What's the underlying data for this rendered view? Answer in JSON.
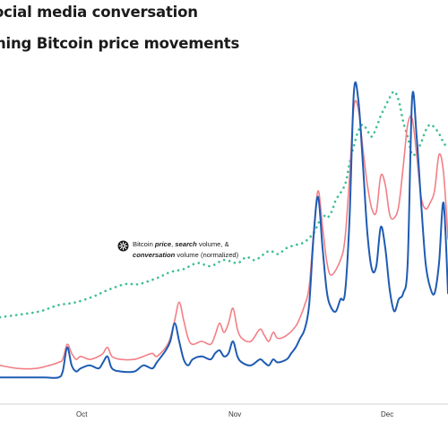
{
  "chart_data": {
    "type": "line",
    "title": {
      "line1": "ocial media conversation",
      "line2": "ning Bitcoin price movements"
    },
    "xlabel": "",
    "ylabel": "",
    "x_ticks": [
      "Oct",
      "Nov",
      "Dec"
    ],
    "annotation": {
      "prefix": "Bitcoin ",
      "w1": "price",
      "sep1": ", ",
      "w2": "search",
      "mid": " volume, &",
      "w3": "conversation",
      "suffix": " volume (normalized)"
    },
    "grid": false,
    "legend": "none",
    "y_range": [
      0,
      100
    ],
    "x_range": [
      0,
      100
    ],
    "series": [
      {
        "key": "price",
        "color": "#3bbf8f",
        "style": "dotted",
        "points": [
          [
            0,
            22
          ],
          [
            5,
            23
          ],
          [
            9,
            24
          ],
          [
            13,
            26
          ],
          [
            17,
            27
          ],
          [
            21,
            29
          ],
          [
            24,
            31
          ],
          [
            28,
            33
          ],
          [
            31,
            33
          ],
          [
            35,
            35
          ],
          [
            38,
            37
          ],
          [
            41,
            38
          ],
          [
            44,
            40
          ],
          [
            47,
            39
          ],
          [
            50,
            41
          ],
          [
            53,
            40
          ],
          [
            55,
            42
          ],
          [
            57,
            41
          ],
          [
            60,
            44
          ],
          [
            62,
            43
          ],
          [
            64,
            45
          ],
          [
            66,
            46
          ],
          [
            68,
            47
          ],
          [
            70,
            50
          ],
          [
            71,
            53
          ],
          [
            72,
            56
          ],
          [
            73,
            55
          ],
          [
            74,
            57
          ],
          [
            75,
            61
          ],
          [
            77,
            66
          ],
          [
            78,
            73
          ],
          [
            79,
            79
          ],
          [
            80,
            84
          ],
          [
            81,
            86
          ],
          [
            82,
            84
          ],
          [
            83,
            82
          ],
          [
            84,
            85
          ],
          [
            85,
            89
          ],
          [
            86,
            92
          ],
          [
            87,
            95
          ],
          [
            88,
            97
          ],
          [
            89,
            94
          ],
          [
            90,
            87
          ],
          [
            91,
            82
          ],
          [
            92,
            76
          ],
          [
            93,
            77
          ],
          [
            94,
            80
          ],
          [
            95,
            84
          ],
          [
            96,
            86
          ],
          [
            97,
            85
          ],
          [
            98,
            83
          ],
          [
            99,
            80
          ],
          [
            100,
            78
          ]
        ]
      },
      {
        "key": "conversation",
        "color": "#f27f86",
        "style": "solid",
        "points": [
          [
            0,
            6
          ],
          [
            4,
            5
          ],
          [
            8,
            5
          ],
          [
            11,
            6
          ],
          [
            13,
            7
          ],
          [
            14,
            8
          ],
          [
            15,
            13
          ],
          [
            16,
            10
          ],
          [
            17,
            8
          ],
          [
            18,
            9
          ],
          [
            20,
            8
          ],
          [
            22,
            9
          ],
          [
            23,
            10
          ],
          [
            24,
            12
          ],
          [
            25,
            9
          ],
          [
            27,
            8
          ],
          [
            30,
            8
          ],
          [
            32,
            9
          ],
          [
            34,
            10
          ],
          [
            35,
            9
          ],
          [
            37,
            12
          ],
          [
            38,
            15
          ],
          [
            39,
            21
          ],
          [
            40,
            27
          ],
          [
            41,
            21
          ],
          [
            42,
            15
          ],
          [
            43,
            13
          ],
          [
            45,
            14
          ],
          [
            47,
            13
          ],
          [
            48,
            16
          ],
          [
            49,
            20
          ],
          [
            50,
            17
          ],
          [
            51,
            20
          ],
          [
            52,
            25
          ],
          [
            53,
            18
          ],
          [
            54,
            15
          ],
          [
            56,
            14
          ],
          [
            58,
            18
          ],
          [
            59,
            16
          ],
          [
            60,
            14
          ],
          [
            61,
            17
          ],
          [
            62,
            15
          ],
          [
            64,
            16
          ],
          [
            66,
            19
          ],
          [
            67,
            22
          ],
          [
            68,
            26
          ],
          [
            69,
            32
          ],
          [
            70,
            50
          ],
          [
            71,
            64
          ],
          [
            72,
            52
          ],
          [
            73,
            40
          ],
          [
            74,
            36
          ],
          [
            76,
            41
          ],
          [
            77,
            48
          ],
          [
            78,
            68
          ],
          [
            79,
            92
          ],
          [
            80,
            91
          ],
          [
            81,
            78
          ],
          [
            82,
            66
          ],
          [
            83,
            58
          ],
          [
            84,
            57
          ],
          [
            85,
            69
          ],
          [
            86,
            66
          ],
          [
            87,
            56
          ],
          [
            88,
            55
          ],
          [
            89,
            59
          ],
          [
            90,
            72
          ],
          [
            91,
            86
          ],
          [
            92,
            88
          ],
          [
            93,
            76
          ],
          [
            94,
            62
          ],
          [
            95,
            58
          ],
          [
            96,
            60
          ],
          [
            97,
            64
          ],
          [
            98,
            76
          ],
          [
            99,
            70
          ],
          [
            100,
            48
          ]
        ]
      },
      {
        "key": "search",
        "color": "#1f5bb3",
        "style": "solid",
        "points": [
          [
            0,
            2
          ],
          [
            5,
            2
          ],
          [
            10,
            2
          ],
          [
            13,
            2
          ],
          [
            14,
            4
          ],
          [
            15,
            12
          ],
          [
            16,
            6
          ],
          [
            17,
            4
          ],
          [
            18,
            5
          ],
          [
            20,
            6
          ],
          [
            22,
            5
          ],
          [
            23,
            7
          ],
          [
            24,
            9
          ],
          [
            25,
            5
          ],
          [
            27,
            4
          ],
          [
            30,
            4
          ],
          [
            32,
            6
          ],
          [
            34,
            5
          ],
          [
            35,
            7
          ],
          [
            37,
            11
          ],
          [
            38,
            14
          ],
          [
            39,
            20
          ],
          [
            40,
            14
          ],
          [
            41,
            8
          ],
          [
            42,
            6
          ],
          [
            43,
            8
          ],
          [
            45,
            9
          ],
          [
            47,
            8
          ],
          [
            48,
            10
          ],
          [
            49,
            11
          ],
          [
            50,
            9
          ],
          [
            51,
            10
          ],
          [
            52,
            14
          ],
          [
            53,
            9
          ],
          [
            54,
            7
          ],
          [
            56,
            6
          ],
          [
            58,
            8
          ],
          [
            59,
            7
          ],
          [
            60,
            6
          ],
          [
            61,
            8
          ],
          [
            62,
            7
          ],
          [
            64,
            8
          ],
          [
            65,
            10
          ],
          [
            66,
            12
          ],
          [
            67,
            15
          ],
          [
            68,
            18
          ],
          [
            69,
            26
          ],
          [
            70,
            49
          ],
          [
            71,
            62
          ],
          [
            72,
            45
          ],
          [
            73,
            30
          ],
          [
            74,
            25
          ],
          [
            75,
            24
          ],
          [
            76,
            28
          ],
          [
            77,
            30
          ],
          [
            78,
            54
          ],
          [
            79,
            97
          ],
          [
            80,
            94
          ],
          [
            81,
            73
          ],
          [
            82,
            50
          ],
          [
            83,
            38
          ],
          [
            84,
            39
          ],
          [
            85,
            52
          ],
          [
            86,
            45
          ],
          [
            87,
            31
          ],
          [
            88,
            24
          ],
          [
            89,
            28
          ],
          [
            90,
            30
          ],
          [
            91,
            40
          ],
          [
            92,
            95
          ],
          [
            93,
            82
          ],
          [
            94,
            60
          ],
          [
            95,
            40
          ],
          [
            96,
            32
          ],
          [
            97,
            30
          ],
          [
            98,
            40
          ],
          [
            99,
            60
          ],
          [
            100,
            30
          ]
        ]
      }
    ]
  },
  "annotation_icon": "sunburst-icon"
}
